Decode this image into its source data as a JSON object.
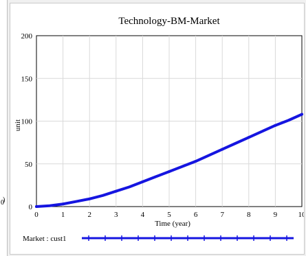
{
  "left_strip": {
    "fragments": [
      "0",
      ")"
    ]
  },
  "chart_data": {
    "type": "line",
    "title": "Technology-BM-Market",
    "xlabel": "Time (year)",
    "ylabel": "unit",
    "xlim": [
      0,
      10
    ],
    "ylim": [
      0,
      200
    ],
    "x_ticks": [
      0,
      1,
      2,
      3,
      4,
      5,
      6,
      7,
      8,
      9,
      10
    ],
    "y_ticks": [
      0,
      50,
      100,
      150,
      200
    ],
    "grid": true,
    "legend_position": "bottom",
    "series": [
      {
        "name": "Market : cust1",
        "color": "#1515e0",
        "x": [
          0,
          0.5,
          1,
          1.5,
          2,
          2.5,
          3,
          3.5,
          4,
          4.5,
          5,
          5.5,
          6,
          6.5,
          7,
          7.5,
          8,
          8.5,
          9,
          9.5,
          10
        ],
        "y": [
          0,
          1,
          3,
          6,
          9,
          13,
          18,
          23,
          29,
          35,
          41,
          47,
          53,
          60,
          67,
          74,
          81,
          88,
          95,
          101,
          108
        ]
      }
    ]
  }
}
